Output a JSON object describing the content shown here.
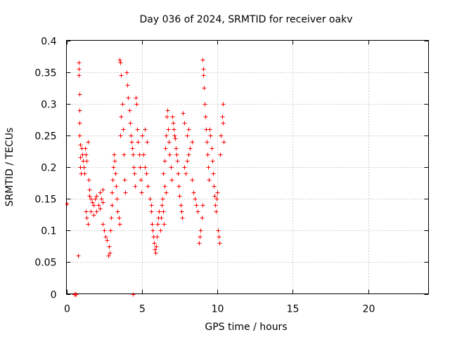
{
  "chart_data": {
    "type": "scatter",
    "title": "Day 036 of 2024, SRMTID for receiver oakv",
    "xlabel": "GPS time / hours",
    "ylabel": "SRMTID / TECUs",
    "xlim": [
      0,
      24
    ],
    "ylim": [
      0,
      0.4
    ],
    "xticks": [
      0,
      5,
      10,
      15,
      20
    ],
    "xtick_labels": [
      "0",
      "5",
      "10",
      "15",
      "20"
    ],
    "yticks": [
      0,
      0.05,
      0.1,
      0.15,
      0.2,
      0.25,
      0.3,
      0.35,
      0.4
    ],
    "ytick_labels": [
      "0",
      "0.05",
      "0.1",
      "0.15",
      "0.2",
      "0.25",
      "0.3",
      "0.35",
      "0.4"
    ],
    "grid": true,
    "marker": "+",
    "color": "#ff0000",
    "series": [
      {
        "name": "SRMTID",
        "points": [
          [
            0.0,
            0.142
          ],
          [
            0.5,
            0.0
          ],
          [
            0.6,
            0.0
          ],
          [
            0.65,
            0.0
          ],
          [
            4.4,
            0.0
          ],
          [
            0.8,
            0.365
          ],
          [
            0.8,
            0.355
          ],
          [
            0.82,
            0.345
          ],
          [
            0.85,
            0.315
          ],
          [
            0.85,
            0.29
          ],
          [
            0.87,
            0.27
          ],
          [
            0.88,
            0.25
          ],
          [
            0.9,
            0.235
          ],
          [
            0.9,
            0.215
          ],
          [
            0.92,
            0.2
          ],
          [
            0.95,
            0.19
          ],
          [
            0.78,
            0.06
          ],
          [
            1.0,
            0.23
          ],
          [
            1.05,
            0.22
          ],
          [
            1.1,
            0.21
          ],
          [
            1.15,
            0.2
          ],
          [
            1.2,
            0.19
          ],
          [
            1.25,
            0.23
          ],
          [
            1.3,
            0.22
          ],
          [
            1.35,
            0.21
          ],
          [
            1.4,
            0.24
          ],
          [
            1.45,
            0.18
          ],
          [
            1.5,
            0.165
          ],
          [
            1.3,
            0.13
          ],
          [
            1.35,
            0.12
          ],
          [
            1.4,
            0.11
          ],
          [
            1.5,
            0.155
          ],
          [
            1.6,
            0.15
          ],
          [
            1.7,
            0.145
          ],
          [
            1.8,
            0.14
          ],
          [
            1.9,
            0.15
          ],
          [
            2.0,
            0.155
          ],
          [
            2.1,
            0.14
          ],
          [
            2.2,
            0.135
          ],
          [
            2.3,
            0.15
          ],
          [
            2.4,
            0.145
          ],
          [
            1.6,
            0.13
          ],
          [
            1.8,
            0.125
          ],
          [
            2.0,
            0.13
          ],
          [
            2.2,
            0.16
          ],
          [
            2.4,
            0.165
          ],
          [
            2.4,
            0.11
          ],
          [
            2.5,
            0.1
          ],
          [
            2.6,
            0.09
          ],
          [
            2.7,
            0.085
          ],
          [
            2.8,
            0.075
          ],
          [
            2.75,
            0.06
          ],
          [
            2.85,
            0.065
          ],
          [
            2.9,
            0.1
          ],
          [
            2.95,
            0.12
          ],
          [
            3.0,
            0.14
          ],
          [
            3.0,
            0.16
          ],
          [
            3.05,
            0.18
          ],
          [
            3.1,
            0.2
          ],
          [
            3.15,
            0.22
          ],
          [
            3.2,
            0.21
          ],
          [
            3.25,
            0.19
          ],
          [
            3.3,
            0.17
          ],
          [
            3.35,
            0.15
          ],
          [
            3.4,
            0.13
          ],
          [
            3.45,
            0.12
          ],
          [
            3.5,
            0.11
          ],
          [
            3.55,
            0.25
          ],
          [
            3.6,
            0.28
          ],
          [
            3.5,
            0.37
          ],
          [
            3.55,
            0.365
          ],
          [
            3.6,
            0.345
          ],
          [
            3.7,
            0.3
          ],
          [
            3.75,
            0.26
          ],
          [
            3.8,
            0.22
          ],
          [
            3.85,
            0.18
          ],
          [
            3.9,
            0.16
          ],
          [
            4.0,
            0.35
          ],
          [
            4.05,
            0.33
          ],
          [
            4.1,
            0.31
          ],
          [
            4.15,
            0.29
          ],
          [
            4.2,
            0.27
          ],
          [
            4.25,
            0.25
          ],
          [
            4.3,
            0.24
          ],
          [
            4.35,
            0.23
          ],
          [
            4.4,
            0.22
          ],
          [
            4.45,
            0.2
          ],
          [
            4.5,
            0.19
          ],
          [
            4.55,
            0.17
          ],
          [
            4.6,
            0.31
          ],
          [
            4.65,
            0.3
          ],
          [
            4.7,
            0.26
          ],
          [
            4.75,
            0.24
          ],
          [
            4.8,
            0.22
          ],
          [
            4.85,
            0.2
          ],
          [
            4.9,
            0.18
          ],
          [
            4.95,
            0.16
          ],
          [
            5.0,
            0.25
          ],
          [
            5.1,
            0.22
          ],
          [
            5.2,
            0.2
          ],
          [
            5.3,
            0.19
          ],
          [
            5.4,
            0.17
          ],
          [
            5.5,
            0.15
          ],
          [
            5.6,
            0.14
          ],
          [
            5.2,
            0.26
          ],
          [
            5.35,
            0.24
          ],
          [
            5.6,
            0.13
          ],
          [
            5.65,
            0.11
          ],
          [
            5.7,
            0.1
          ],
          [
            5.75,
            0.09
          ],
          [
            5.8,
            0.08
          ],
          [
            5.85,
            0.07
          ],
          [
            5.9,
            0.065
          ],
          [
            5.95,
            0.075
          ],
          [
            6.0,
            0.09
          ],
          [
            6.05,
            0.11
          ],
          [
            6.1,
            0.12
          ],
          [
            6.15,
            0.13
          ],
          [
            6.2,
            0.1
          ],
          [
            6.25,
            0.12
          ],
          [
            6.3,
            0.14
          ],
          [
            6.35,
            0.15
          ],
          [
            6.4,
            0.13
          ],
          [
            6.45,
            0.11
          ],
          [
            6.4,
            0.19
          ],
          [
            6.5,
            0.21
          ],
          [
            6.55,
            0.23
          ],
          [
            6.6,
            0.25
          ],
          [
            6.65,
            0.28
          ],
          [
            6.7,
            0.29
          ],
          [
            6.75,
            0.26
          ],
          [
            6.8,
            0.24
          ],
          [
            6.85,
            0.22
          ],
          [
            6.9,
            0.2
          ],
          [
            6.95,
            0.18
          ],
          [
            6.5,
            0.17
          ],
          [
            6.6,
            0.16
          ],
          [
            7.0,
            0.28
          ],
          [
            7.05,
            0.27
          ],
          [
            7.1,
            0.26
          ],
          [
            7.15,
            0.25
          ],
          [
            7.2,
            0.245
          ],
          [
            7.25,
            0.23
          ],
          [
            7.3,
            0.22
          ],
          [
            7.35,
            0.21
          ],
          [
            7.4,
            0.19
          ],
          [
            7.45,
            0.17
          ],
          [
            7.5,
            0.155
          ],
          [
            7.55,
            0.14
          ],
          [
            7.6,
            0.13
          ],
          [
            7.65,
            0.12
          ],
          [
            7.7,
            0.285
          ],
          [
            7.8,
            0.27
          ],
          [
            7.8,
            0.2
          ],
          [
            7.9,
            0.19
          ],
          [
            8.0,
            0.21
          ],
          [
            8.1,
            0.22
          ],
          [
            8.2,
            0.23
          ],
          [
            8.3,
            0.24
          ],
          [
            8.0,
            0.25
          ],
          [
            8.1,
            0.26
          ],
          [
            8.3,
            0.18
          ],
          [
            8.4,
            0.16
          ],
          [
            8.5,
            0.15
          ],
          [
            8.6,
            0.14
          ],
          [
            8.7,
            0.13
          ],
          [
            8.8,
            0.08
          ],
          [
            8.85,
            0.09
          ],
          [
            8.9,
            0.1
          ],
          [
            8.95,
            0.12
          ],
          [
            9.0,
            0.14
          ],
          [
            9.0,
            0.37
          ],
          [
            9.05,
            0.355
          ],
          [
            9.08,
            0.345
          ],
          [
            9.1,
            0.325
          ],
          [
            9.15,
            0.3
          ],
          [
            9.2,
            0.28
          ],
          [
            9.25,
            0.26
          ],
          [
            9.3,
            0.24
          ],
          [
            9.35,
            0.22
          ],
          [
            9.4,
            0.2
          ],
          [
            9.45,
            0.18
          ],
          [
            9.5,
            0.26
          ],
          [
            9.55,
            0.25
          ],
          [
            9.6,
            0.23
          ],
          [
            9.65,
            0.21
          ],
          [
            9.7,
            0.19
          ],
          [
            9.75,
            0.17
          ],
          [
            9.8,
            0.155
          ],
          [
            9.85,
            0.14
          ],
          [
            9.9,
            0.13
          ],
          [
            9.95,
            0.15
          ],
          [
            10.0,
            0.16
          ],
          [
            10.05,
            0.1
          ],
          [
            10.1,
            0.09
          ],
          [
            10.15,
            0.08
          ],
          [
            10.2,
            0.22
          ],
          [
            10.25,
            0.25
          ],
          [
            10.3,
            0.28
          ],
          [
            10.35,
            0.3
          ],
          [
            10.38,
            0.27
          ],
          [
            10.4,
            0.24
          ]
        ]
      }
    ]
  }
}
